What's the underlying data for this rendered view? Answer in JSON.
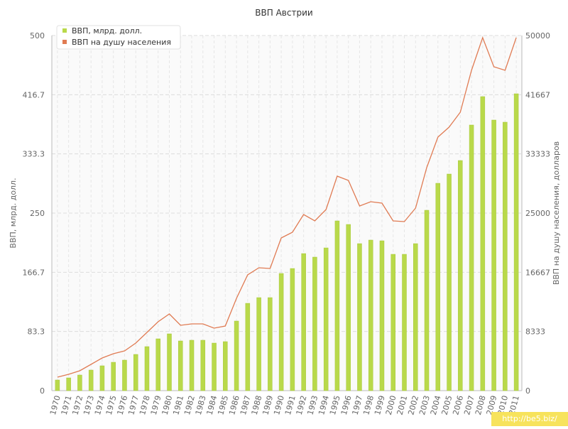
{
  "chart_data": {
    "type": "bar+line",
    "title": "ВВП Австрии",
    "ylabel_left": "ВВП, млрд. долл.",
    "ylabel_right": "ВВП на душу населения, долларов",
    "ylim_left": [
      0,
      500
    ],
    "ylim_right": [
      0,
      50000
    ],
    "yticks_left": [
      "0",
      "83.3",
      "166.7",
      "250",
      "333.3",
      "416.7",
      "500"
    ],
    "yticks_right": [
      "0",
      "8333",
      "16667",
      "25000",
      "33333",
      "41667",
      "50000"
    ],
    "grid": true,
    "legend_position": "top-left",
    "categories": [
      "1970",
      "1971",
      "1972",
      "1973",
      "1974",
      "1975",
      "1976",
      "1977",
      "1978",
      "1979",
      "1980",
      "1981",
      "1982",
      "1983",
      "1984",
      "1985",
      "1986",
      "1987",
      "1988",
      "1989",
      "1990",
      "1991",
      "1992",
      "1993",
      "1994",
      "1995",
      "1996",
      "1997",
      "1998",
      "1999",
      "2000",
      "2001",
      "2002",
      "2003",
      "2004",
      "2005",
      "2006",
      "2007",
      "2008",
      "2009",
      "2010",
      "2011"
    ],
    "series": [
      {
        "name": "ВВП, млрд. долл.",
        "type": "bar",
        "axis": "left",
        "color": "#b9d94a",
        "values": [
          15,
          18,
          22,
          29,
          35,
          40,
          43,
          51,
          62,
          73,
          80,
          70,
          71,
          71,
          67,
          69,
          98,
          123,
          131,
          131,
          165,
          172,
          193,
          188,
          201,
          239,
          234,
          207,
          212,
          211,
          192,
          192,
          207,
          254,
          292,
          305,
          324,
          374,
          414,
          381,
          378,
          418
        ]
      },
      {
        "name": "ВВП на душу населения",
        "type": "line",
        "axis": "right",
        "color": "#e07b53",
        "values": [
          1900,
          2300,
          2800,
          3700,
          4600,
          5200,
          5600,
          6700,
          8200,
          9700,
          10800,
          9200,
          9400,
          9400,
          8800,
          9100,
          13000,
          16300,
          17300,
          17200,
          21500,
          22300,
          24800,
          23900,
          25500,
          30200,
          29600,
          26000,
          26600,
          26400,
          23900,
          23800,
          25700,
          31400,
          35700,
          37100,
          39200,
          45100,
          49700,
          45600,
          45100,
          49700
        ]
      }
    ]
  },
  "watermark": "http://be5.biz/"
}
